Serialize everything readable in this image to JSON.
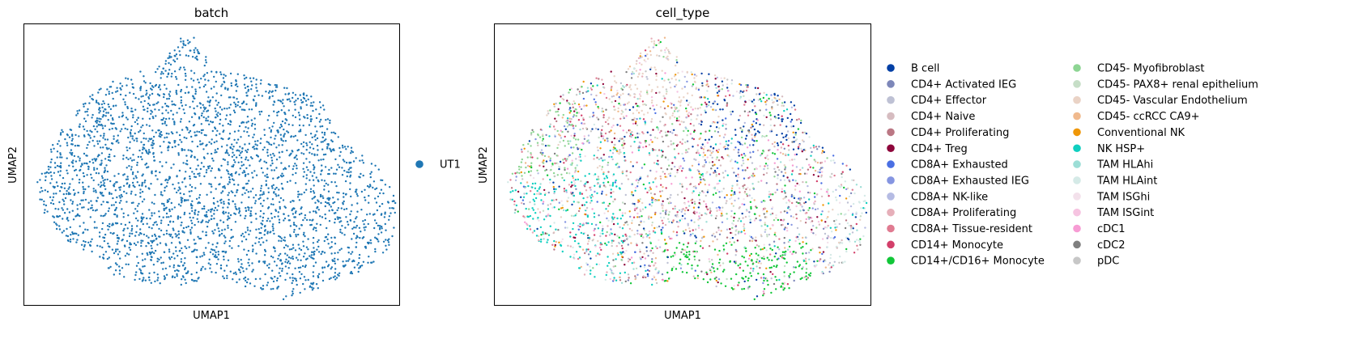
{
  "chart_data": [
    {
      "type": "scatter",
      "title": "batch",
      "xlabel": "UMAP1",
      "ylabel": "UMAP2",
      "ticks": "none",
      "legend_placement": "right",
      "series": [
        {
          "name": "UT1",
          "color": "#1f77b4"
        }
      ]
    },
    {
      "type": "scatter",
      "title": "cell_type",
      "xlabel": "UMAP1",
      "ylabel": "UMAP2",
      "ticks": "none",
      "legend_placement": "right",
      "series": [
        {
          "name": "B cell",
          "color": "#023fa5"
        },
        {
          "name": "CD4+ Activated IEG",
          "color": "#7d87b9"
        },
        {
          "name": "CD4+ Effector",
          "color": "#bec1d4"
        },
        {
          "name": "CD4+ Naive",
          "color": "#d6bcc0"
        },
        {
          "name": "CD4+ Proliferating",
          "color": "#bb7784"
        },
        {
          "name": "CD4+ Treg",
          "color": "#8e063b"
        },
        {
          "name": "CD8A+ Exhausted",
          "color": "#4a6fe3"
        },
        {
          "name": "CD8A+ Exhausted IEG",
          "color": "#8595e1"
        },
        {
          "name": "CD8A+ NK-like",
          "color": "#b5bbe3"
        },
        {
          "name": "CD8A+ Proliferating",
          "color": "#e6afb9"
        },
        {
          "name": "CD8A+ Tissue-resident",
          "color": "#e07b91"
        },
        {
          "name": "CD14+ Monocyte",
          "color": "#d33f6a"
        },
        {
          "name": "CD14+/CD16+ Monocyte",
          "color": "#11c638"
        },
        {
          "name": "CD45- Myofibroblast",
          "color": "#8dd593"
        },
        {
          "name": "CD45- PAX8+ renal epithelium",
          "color": "#c6dec7"
        },
        {
          "name": "CD45- Vascular Endothelium",
          "color": "#ead3c6"
        },
        {
          "name": "CD45- ccRCC CA9+",
          "color": "#f0b98d"
        },
        {
          "name": "Conventional NK",
          "color": "#ef9708"
        },
        {
          "name": "NK HSP+",
          "color": "#0fcfc0"
        },
        {
          "name": "TAM HLAhi",
          "color": "#9cded6"
        },
        {
          "name": "TAM HLAint",
          "color": "#d5eae7"
        },
        {
          "name": "TAM ISGhi",
          "color": "#f3e1eb"
        },
        {
          "name": "TAM ISGint",
          "color": "#f6c4e1"
        },
        {
          "name": "cDC1",
          "color": "#f79cd4"
        },
        {
          "name": "cDC2",
          "color": "#7f7f7f"
        },
        {
          "name": "pDC",
          "color": "#c7c7c7"
        }
      ]
    }
  ]
}
